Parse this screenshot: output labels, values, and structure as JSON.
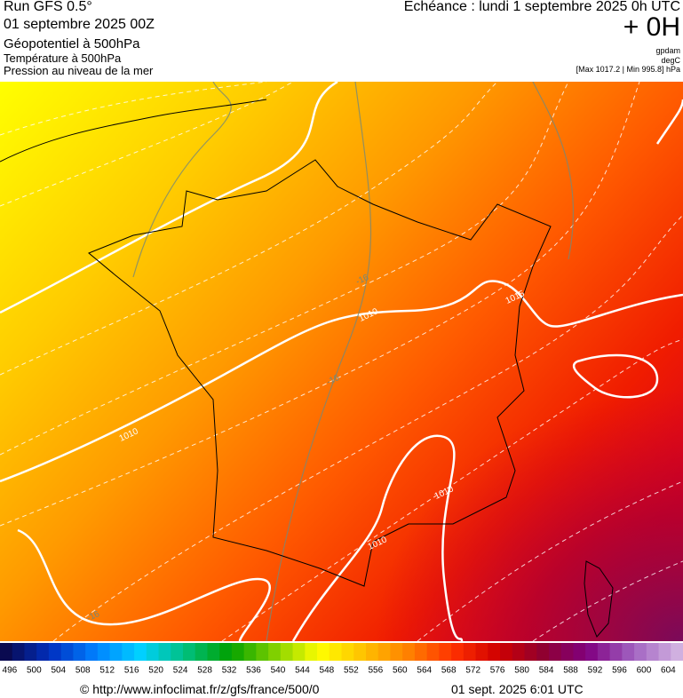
{
  "header": {
    "run": "Run GFS 0.5°",
    "date": "01 septembre 2025 00Z",
    "field1": "Géopotentiel à 500hPa",
    "field2": "Température à 500hPa",
    "field3": "Pression au niveau de la mer",
    "echeance": "Echéance : lundi 1 septembre 2025 0h UTC",
    "offset": "+ 0H",
    "unit1": "gpdam",
    "unit2": "degC",
    "minmax": "[Max 1017.2 | Min 995.8] hPa"
  },
  "map_labels": [
    {
      "text": "1010"
    },
    {
      "text": "1010"
    },
    {
      "text": "1010"
    },
    {
      "text": "1010"
    },
    {
      "text": "-16"
    },
    {
      "text": "-16"
    },
    {
      "text": "-16"
    },
    {
      "text": "1015"
    }
  ],
  "scale": {
    "labels": [
      496,
      500,
      504,
      508,
      512,
      516,
      520,
      524,
      528,
      532,
      536,
      540,
      544,
      548,
      552,
      556,
      560,
      564,
      568,
      572,
      576,
      580,
      584,
      588,
      592,
      596,
      600,
      604
    ]
  },
  "footer": {
    "url": "© http://www.infoclimat.fr/z/gfs/france/500/0",
    "timestamp": "01 sept. 2025  6:01 UTC"
  }
}
